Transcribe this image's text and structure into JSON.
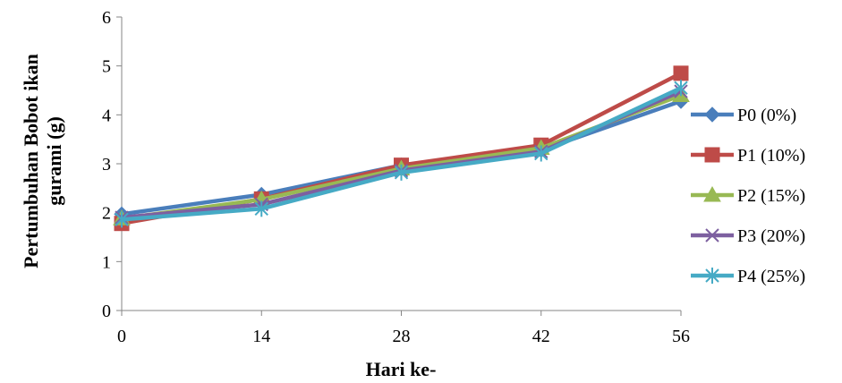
{
  "chart_data": {
    "type": "line",
    "title": "",
    "xlabel": "Hari ke-",
    "ylabel_lines": [
      "Pertumbuhan Bobot ikan",
      "gurami (g)"
    ],
    "x": [
      0,
      14,
      28,
      42,
      56
    ],
    "x_tick_labels": [
      "0",
      "14",
      "28",
      "42",
      "56"
    ],
    "ylim": [
      0,
      6
    ],
    "y_tick_labels": [
      "0",
      "1",
      "2",
      "3",
      "4",
      "5",
      "6"
    ],
    "grid": false,
    "legend_position": "right",
    "series": [
      {
        "name": "P0 (0%)",
        "values": [
          1.97,
          2.37,
          2.97,
          3.28,
          4.28
        ],
        "color": "#4a7ebb",
        "marker": "diamond"
      },
      {
        "name": "P1 (10%)",
        "values": [
          1.78,
          2.28,
          2.97,
          3.38,
          4.85
        ],
        "color": "#be4b48",
        "marker": "square"
      },
      {
        "name": "P2 (15%)",
        "values": [
          1.88,
          2.27,
          2.9,
          3.32,
          4.4
        ],
        "color": "#98b954",
        "marker": "triangle"
      },
      {
        "name": "P3 (20%)",
        "values": [
          1.9,
          2.17,
          2.86,
          3.25,
          4.48
        ],
        "color": "#7d60a0",
        "marker": "x"
      },
      {
        "name": "P4 (25%)",
        "values": [
          1.86,
          2.08,
          2.82,
          3.21,
          4.55
        ],
        "color": "#46aac5",
        "marker": "star"
      }
    ]
  }
}
